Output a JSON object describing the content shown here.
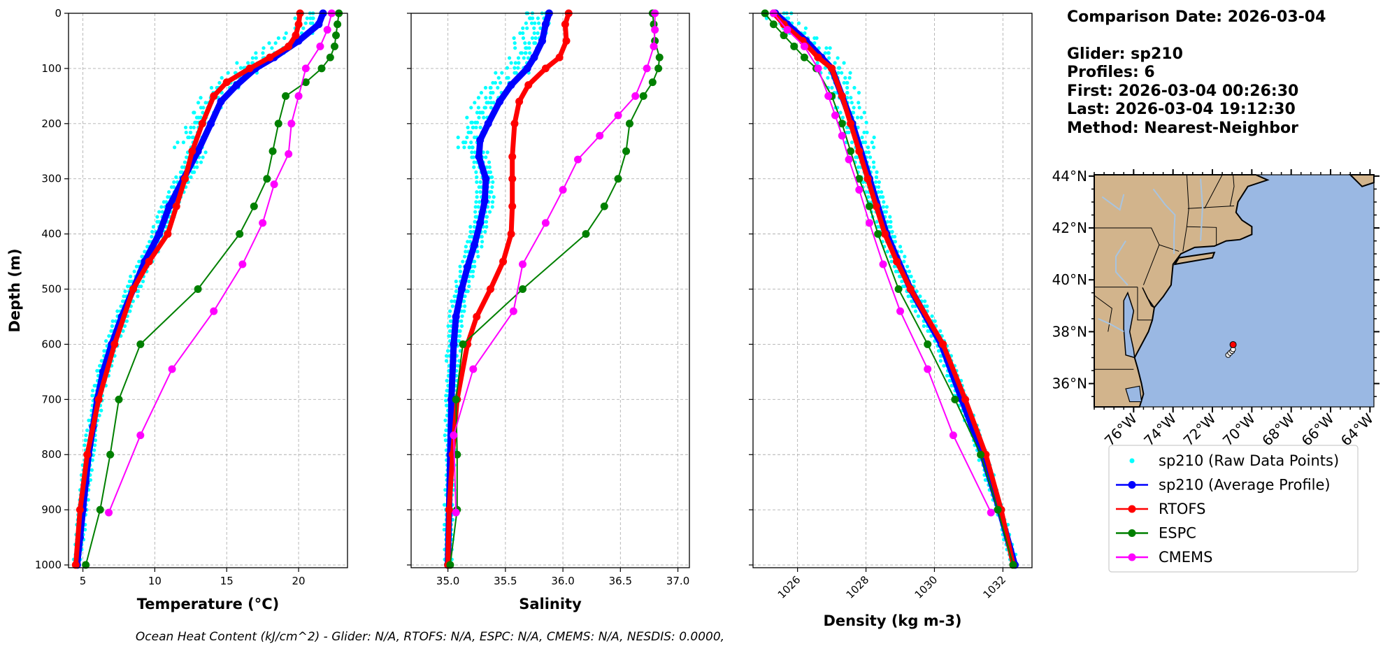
{
  "info": {
    "comparison": "Comparison Date: 2026-03-04",
    "glider": "Glider: sp210",
    "profiles": "Profiles: 6",
    "first": "First: 2026-03-04 00:26:30",
    "last": "Last: 2026-03-04 19:12:30",
    "method": "Method: Nearest-Neighbor"
  },
  "footer": "Ocean Heat Content (kJ/cm^2) - Glider: N/A,  RTOFS: N/A,  ESPC: N/A,  CMEMS: N/A,  NESDIS: 0.0000,",
  "colors": {
    "raw": "#00ffff",
    "avg": "#0000ff",
    "rtofs": "#ff0000",
    "espc": "#008000",
    "cmems": "#ff00ff",
    "land": "#d2b48c",
    "ocean": "#9ab8e3",
    "rivers": "#a8c4e0",
    "grid": "#b0b0b0"
  },
  "legend": [
    "sp210 (Raw Data Points)",
    "sp210 (Average Profile)",
    "RTOFS",
    "ESPC",
    "CMEMS"
  ],
  "map": {
    "lat_labels": [
      "44°N",
      "42°N",
      "40°N",
      "38°N",
      "36°N"
    ],
    "lat_values": [
      44,
      42,
      40,
      38,
      36
    ],
    "lon_labels": [
      "76°W",
      "74°W",
      "72°W",
      "70°W",
      "68°W",
      "66°W",
      "64°W"
    ],
    "lon_values": [
      -76,
      -74,
      -72,
      -70,
      -68,
      -66,
      -64
    ],
    "extent": [
      -78,
      -63.8,
      35.1,
      44.05
    ],
    "glider_positions": [
      [
        -71.2,
        37.1
      ],
      [
        -71.1,
        37.18
      ],
      [
        -71.0,
        37.25
      ],
      [
        -70.95,
        37.32
      ]
    ],
    "model_point": [
      -70.95,
      37.5
    ]
  },
  "chart_data": [
    {
      "type": "line",
      "xlabel": "Temperature (°C)",
      "ylabel": "Depth (m)",
      "xlim": [
        4.0,
        23.4
      ],
      "ylim": [
        1005,
        0
      ],
      "xticks": [
        5,
        10,
        15,
        20
      ],
      "yticks": [
        0,
        100,
        200,
        300,
        400,
        500,
        600,
        700,
        800,
        900,
        1000
      ],
      "grid": true,
      "series": [
        {
          "name": "sp210 (Average Profile)",
          "depth": [
            0,
            20,
            50,
            80,
            100,
            130,
            160,
            200,
            250,
            300,
            350,
            400,
            450,
            500,
            550,
            600,
            650,
            700,
            750,
            800,
            850,
            900,
            950,
            1000
          ],
          "values": [
            21.7,
            21.4,
            20.0,
            18.3,
            17.0,
            15.7,
            14.6,
            13.9,
            13.0,
            12.0,
            11.0,
            10.3,
            9.3,
            8.5,
            7.7,
            7.0,
            6.4,
            6.0,
            5.7,
            5.4,
            5.2,
            5.0,
            4.8,
            4.6
          ]
        },
        {
          "name": "RTOFS",
          "depth": [
            0,
            20,
            40,
            60,
            80,
            100,
            125,
            150,
            200,
            250,
            300,
            350,
            400,
            450,
            500,
            600,
            700,
            800,
            900,
            1000
          ],
          "values": [
            20.1,
            20.0,
            19.8,
            19.3,
            18.0,
            16.6,
            15.0,
            14.1,
            13.3,
            12.6,
            12.1,
            11.5,
            10.9,
            9.6,
            8.5,
            7.2,
            6.1,
            5.3,
            4.8,
            4.5
          ]
        },
        {
          "name": "ESPC",
          "depth": [
            0,
            20,
            40,
            60,
            80,
            100,
            125,
            150,
            200,
            250,
            300,
            350,
            400,
            500,
            600,
            700,
            800,
            900,
            1000
          ],
          "values": [
            22.8,
            22.7,
            22.6,
            22.5,
            22.2,
            21.6,
            20.5,
            19.1,
            18.6,
            18.2,
            17.8,
            16.9,
            15.9,
            13.0,
            9.0,
            7.5,
            6.9,
            6.2,
            5.2
          ]
        },
        {
          "name": "CMEMS",
          "depth": [
            0,
            30,
            60,
            100,
            150,
            200,
            255,
            310,
            380,
            455,
            540,
            645,
            765,
            905
          ],
          "values": [
            22.3,
            22.0,
            21.5,
            20.5,
            20.0,
            19.5,
            19.3,
            18.3,
            17.5,
            16.1,
            14.1,
            11.2,
            9.0,
            6.8
          ]
        }
      ]
    },
    {
      "type": "line",
      "xlabel": "Salinity",
      "ylabel": "",
      "xlim": [
        34.68,
        37.1
      ],
      "ylim": [
        1005,
        0
      ],
      "xticks": [
        35.0,
        35.5,
        36.0,
        36.5,
        37.0
      ],
      "yticks": [
        0,
        100,
        200,
        300,
        400,
        500,
        600,
        700,
        800,
        900,
        1000
      ],
      "grid": true,
      "series": [
        {
          "name": "sp210 (Average Profile)",
          "depth": [
            0,
            20,
            50,
            80,
            100,
            130,
            160,
            200,
            230,
            260,
            300,
            340,
            380,
            420,
            460,
            500,
            550,
            600,
            700,
            800,
            900,
            1000
          ],
          "values": [
            35.88,
            35.85,
            35.82,
            35.75,
            35.69,
            35.55,
            35.45,
            35.35,
            35.28,
            35.27,
            35.33,
            35.32,
            35.28,
            35.23,
            35.17,
            35.12,
            35.07,
            35.05,
            35.03,
            35.02,
            35.01,
            35.0
          ]
        },
        {
          "name": "RTOFS",
          "depth": [
            0,
            20,
            50,
            80,
            100,
            130,
            160,
            200,
            260,
            300,
            350,
            400,
            450,
            500,
            550,
            600,
            700,
            800,
            900,
            1000
          ],
          "values": [
            36.05,
            36.02,
            36.03,
            35.97,
            35.85,
            35.7,
            35.62,
            35.58,
            35.56,
            35.56,
            35.56,
            35.55,
            35.48,
            35.37,
            35.25,
            35.17,
            35.08,
            35.04,
            35.01,
            35.0
          ]
        },
        {
          "name": "ESPC",
          "depth": [
            0,
            20,
            50,
            80,
            100,
            125,
            150,
            200,
            250,
            300,
            350,
            400,
            500,
            600,
            700,
            800,
            900,
            1000
          ],
          "values": [
            36.78,
            36.79,
            36.8,
            36.84,
            36.83,
            36.78,
            36.7,
            36.58,
            36.55,
            36.48,
            36.36,
            36.2,
            35.65,
            35.13,
            35.07,
            35.08,
            35.08,
            35.02
          ]
        },
        {
          "name": "CMEMS",
          "depth": [
            0,
            30,
            60,
            100,
            150,
            185,
            222,
            265,
            320,
            380,
            455,
            540,
            645,
            765,
            905
          ],
          "values": [
            36.8,
            36.8,
            36.79,
            36.73,
            36.63,
            36.48,
            36.32,
            36.13,
            36.0,
            35.85,
            35.65,
            35.57,
            35.22,
            35.05,
            35.07
          ]
        }
      ]
    },
    {
      "type": "line",
      "xlabel": "Density (kg m-3)",
      "ylabel": "",
      "xlim": [
        1024.7,
        1032.85
      ],
      "ylim": [
        1005,
        0
      ],
      "xticks": [
        1026,
        1028,
        1030,
        1032
      ],
      "yticks": [
        0,
        100,
        200,
        300,
        400,
        500,
        600,
        700,
        800,
        900,
        1000
      ],
      "grid": true,
      "series": [
        {
          "name": "sp210 (Average Profile)",
          "depth": [
            0,
            20,
            50,
            80,
            100,
            150,
            200,
            300,
            400,
            500,
            600,
            700,
            800,
            900,
            1000
          ],
          "values": [
            1025.35,
            1025.7,
            1026.25,
            1026.7,
            1027.0,
            1027.3,
            1027.6,
            1028.1,
            1028.6,
            1029.3,
            1030.2,
            1030.8,
            1031.4,
            1031.9,
            1032.35
          ]
        },
        {
          "name": "RTOFS",
          "depth": [
            0,
            20,
            50,
            80,
            100,
            150,
            200,
            250,
            300,
            350,
            400,
            450,
            500,
            600,
            700,
            800,
            900,
            1000
          ],
          "values": [
            1025.3,
            1025.6,
            1026.15,
            1026.6,
            1027.0,
            1027.3,
            1027.55,
            1027.8,
            1028.05,
            1028.3,
            1028.55,
            1028.9,
            1029.3,
            1030.25,
            1030.9,
            1031.5,
            1031.95,
            1032.3
          ]
        },
        {
          "name": "ESPC",
          "depth": [
            0,
            20,
            40,
            60,
            80,
            100,
            150,
            200,
            250,
            300,
            350,
            400,
            500,
            600,
            700,
            800,
            900,
            1000
          ],
          "values": [
            1025.05,
            1025.3,
            1025.6,
            1025.9,
            1026.2,
            1026.55,
            1027.0,
            1027.3,
            1027.55,
            1027.8,
            1028.1,
            1028.35,
            1028.95,
            1029.8,
            1030.6,
            1031.35,
            1031.85,
            1032.3
          ]
        },
        {
          "name": "CMEMS",
          "depth": [
            0,
            30,
            60,
            100,
            150,
            185,
            222,
            265,
            320,
            380,
            455,
            540,
            645,
            765,
            905
          ],
          "values": [
            1025.3,
            1025.7,
            1026.2,
            1026.6,
            1026.9,
            1027.1,
            1027.3,
            1027.5,
            1027.8,
            1028.1,
            1028.5,
            1029.0,
            1029.8,
            1030.55,
            1031.65
          ]
        }
      ]
    }
  ]
}
